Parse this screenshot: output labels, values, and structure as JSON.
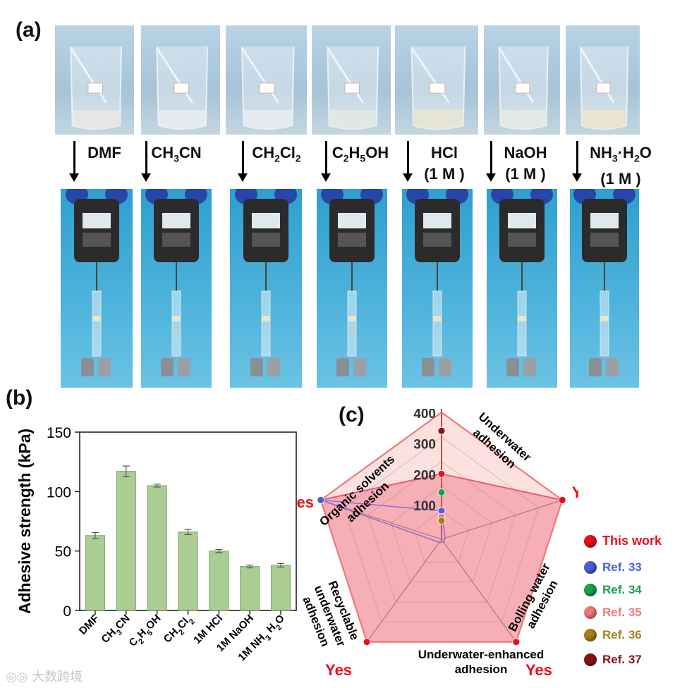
{
  "panel_labels": {
    "a": "(a)",
    "b": "(b)",
    "c": "(c)"
  },
  "solvents": [
    {
      "name": "DMF",
      "color": "#e8e8e2"
    },
    {
      "name": "CH<sub>3</sub>CN",
      "color": "#e9eef0"
    },
    {
      "name": "CH<sub>2</sub>Cl<sub>2</sub>",
      "color": "#e9eef0"
    },
    {
      "name": "C<sub>2</sub>H<sub>5</sub>OH",
      "color": "#e5e8e0"
    },
    {
      "name": "HCl<br>(1 M )",
      "color": "#eae6d2"
    },
    {
      "name": "NaOH<br>(1 M )",
      "color": "#e9eae4"
    },
    {
      "name": "NH<sub>3</sub>·H<sub>2</sub>O<br>(1 M )",
      "color": "#efe4cc"
    }
  ],
  "chart_data": [
    {
      "type": "bar",
      "title": "",
      "xlabel": "",
      "ylabel": "Adhesive strength (kPa)",
      "categories": [
        "DMF",
        "CH3CN",
        "C2H5OH",
        "CH2Cl2",
        "1M HCl",
        "1M NaOH",
        "1M NH3 H2O"
      ],
      "categories_display": [
        "DMF",
        "CH<tspan baseline-shift='sub' font-size='11'>3</tspan>CN",
        "C<tspan baseline-shift='sub' font-size='11'>2</tspan>H<tspan baseline-shift='sub' font-size='11'>5</tspan>OH",
        "CH<tspan baseline-shift='sub' font-size='11'>2</tspan>Cl<tspan baseline-shift='sub' font-size='11'>2</tspan>",
        "1M HCl",
        "1M NaOH",
        "1M NH<tspan baseline-shift='sub' font-size='11'>3</tspan> H<tspan baseline-shift='sub' font-size='11'>2</tspan>O"
      ],
      "values": [
        63,
        117,
        105,
        66,
        50,
        37,
        38
      ],
      "errors": [
        2.5,
        4.5,
        1.2,
        2.2,
        1.3,
        1.2,
        1.5
      ],
      "ylim": [
        0,
        150
      ],
      "yticks": [
        0,
        50,
        100,
        150
      ],
      "bar_color": "#a9cd92",
      "bar_edge": "#7fa86a"
    },
    {
      "type": "radar",
      "axes": [
        "Underwater adhesion",
        "Bolling water adhesion",
        "Underwater-enhanced adhesion",
        "Recyclable underwater adhesion",
        "Organic solvents adhesion"
      ],
      "axis_titles": [
        [
          "Underwater",
          "adhesion"
        ],
        [
          "Bolling water",
          "adhesion"
        ],
        [
          "Underwater-enhanced",
          "adhesion"
        ],
        [
          "Recyclable",
          "underwater",
          "adhesion"
        ],
        [
          "Organic solvents",
          "adhesion"
        ]
      ],
      "top_axis_label": "400 kPa",
      "yes_label": "Yes",
      "radial_ticks": [
        "100",
        "200",
        "300",
        "400"
      ],
      "radial_tick_values": [
        100,
        200,
        300,
        400
      ],
      "series": [
        {
          "name": "This work",
          "color": "#e8101a",
          "values": [
            0.5,
            1,
            1,
            1,
            1
          ]
        },
        {
          "name": "Ref. 33",
          "color": "#4a5fd4",
          "values": [
            0.2,
            0,
            0,
            0,
            1
          ]
        },
        {
          "name": "Ref. 34",
          "color": "#17a34a",
          "values": [
            0.35,
            0,
            0,
            0,
            0
          ]
        },
        {
          "name": "Ref. 35",
          "color": "#f07a7a",
          "values": [
            0.15,
            0,
            0,
            0,
            0
          ]
        },
        {
          "name": "Ref. 36",
          "color": "#a6801a",
          "values": [
            0.12,
            0,
            0,
            0,
            0
          ]
        },
        {
          "name": "Ref. 37",
          "color": "#8a1414",
          "values": [
            0.85,
            0,
            0,
            0,
            0
          ]
        }
      ]
    }
  ],
  "watermark": "大数跨境"
}
